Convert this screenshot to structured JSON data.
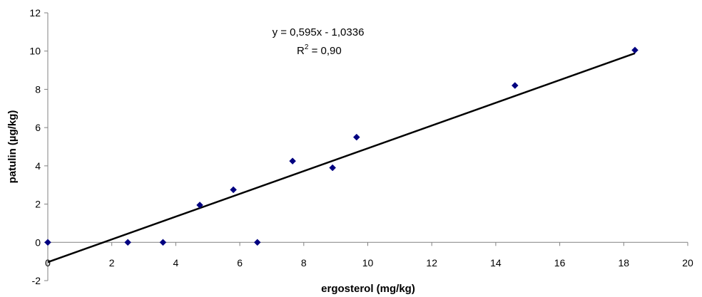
{
  "chart_data": {
    "type": "scatter",
    "xlabel": "ergosterol (mg/kg)",
    "ylabel": "patulin (µg/kg)",
    "xlim": [
      0,
      20
    ],
    "ylim": [
      -2,
      12
    ],
    "x_ticks": [
      "0",
      "2",
      "4",
      "6",
      "8",
      "10",
      "12",
      "14",
      "16",
      "18",
      "20"
    ],
    "y_ticks": [
      "-2",
      "0",
      "2",
      "4",
      "6",
      "8",
      "10",
      "12"
    ],
    "grid": false,
    "legend": "none",
    "marker": "diamond",
    "marker_color": "#000080",
    "points": [
      {
        "x": 0.0,
        "y": 0.0
      },
      {
        "x": 2.5,
        "y": 0.0
      },
      {
        "x": 3.6,
        "y": 0.0
      },
      {
        "x": 4.75,
        "y": 1.95
      },
      {
        "x": 5.8,
        "y": 2.75
      },
      {
        "x": 6.55,
        "y": 0.0
      },
      {
        "x": 7.65,
        "y": 4.25
      },
      {
        "x": 8.9,
        "y": 3.9
      },
      {
        "x": 9.65,
        "y": 5.5
      },
      {
        "x": 14.6,
        "y": 8.2
      },
      {
        "x": 18.35,
        "y": 10.05
      }
    ],
    "trendline": {
      "slope": 0.595,
      "intercept": -1.0336,
      "x_range": [
        0,
        18.35
      ],
      "color": "#000000",
      "equation_text": "y = 0,595x - 1,0336",
      "r2_prefix": "R",
      "r2_exponent": "2",
      "r2_value_text": " = 0,90"
    }
  }
}
